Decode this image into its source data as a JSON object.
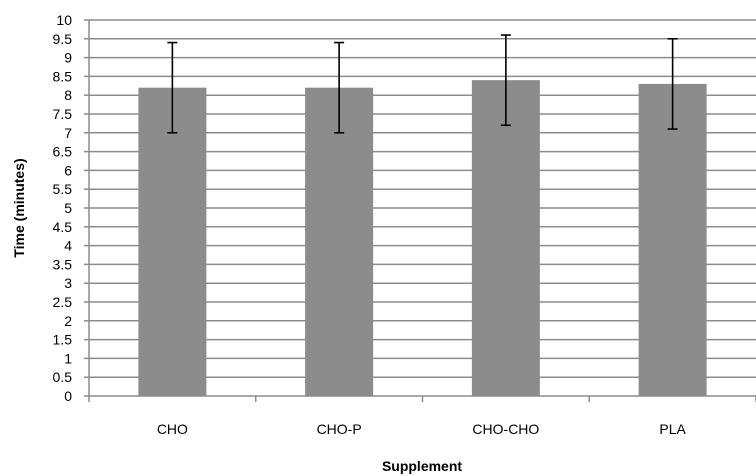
{
  "chart_data": {
    "type": "bar",
    "title": "",
    "xlabel": "Supplement",
    "ylabel": "Time (minutes)",
    "categories": [
      "CHO",
      "CHO-P",
      "CHO-CHO",
      "PLA"
    ],
    "values": [
      8.2,
      8.2,
      8.4,
      8.3
    ],
    "error_low": [
      7.0,
      7.0,
      7.2,
      7.1
    ],
    "error_high": [
      9.4,
      9.4,
      9.6,
      9.5
    ],
    "ylim": [
      0,
      10
    ],
    "y_ticks": [
      "0",
      "0.5",
      "1",
      "1.5",
      "2",
      "2.5",
      "3",
      "3.5",
      "4",
      "4.5",
      "5",
      "5.5",
      "6",
      "6.5",
      "7",
      "7.5",
      "8",
      "8.5",
      "9",
      "9.5",
      "10"
    ],
    "grid": true,
    "legend": "none",
    "bar_color": "#8c8c8c",
    "grid_color": "#8c8c8c",
    "error_bar_color": "#000000"
  }
}
